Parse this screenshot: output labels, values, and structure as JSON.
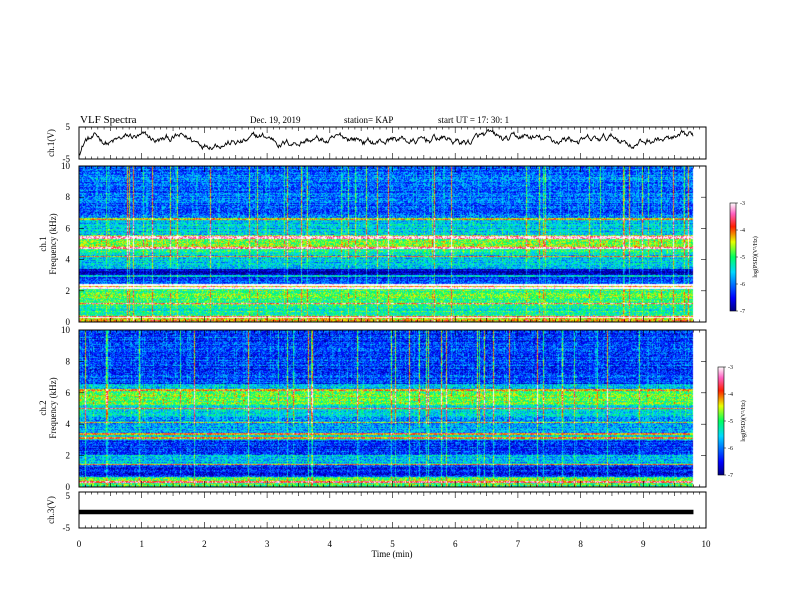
{
  "header": {
    "title": "VLF Spectra",
    "date": "Dec. 19, 2019",
    "station": "station= KAP",
    "start_ut": "start  UT =   17: 30: 1"
  },
  "chart_data": [
    {
      "type": "line",
      "name": "ch1-waveform",
      "ylabel": "ch.1(V)",
      "ylim": [
        -5,
        5
      ],
      "yticks": [
        "5",
        "-5"
      ],
      "xlim": [
        0,
        10
      ],
      "trace_mean": 0.8,
      "trace_spread": 2.2
    },
    {
      "type": "heatmap",
      "name": "ch1-spectrogram",
      "ylabel_channel": "ch.1",
      "ylabel": "Frequency  (kHz)",
      "ylim": [
        0,
        10
      ],
      "yticks": [
        "0",
        "2",
        "4",
        "6",
        "8",
        "10"
      ],
      "xlim": [
        0,
        10
      ],
      "data_end_min": 9.8,
      "colorbar": {
        "label": "log(PSD)(V²/Hz)",
        "range": [
          -7,
          -3
        ],
        "ticks": [
          "-3",
          "-4",
          "-5",
          "-6",
          "-7"
        ]
      },
      "bands_khz": [
        {
          "f0": 0.0,
          "f1": 0.3,
          "level": -4.3
        },
        {
          "f0": 0.3,
          "f1": 1.0,
          "level": -5.2
        },
        {
          "f0": 1.0,
          "f1": 2.1,
          "level": -5.0
        },
        {
          "f0": 2.1,
          "f1": 2.4,
          "level": -4.3
        },
        {
          "f0": 2.4,
          "f1": 2.8,
          "level": -6.3
        },
        {
          "f0": 2.8,
          "f1": 3.4,
          "level": -6.8
        },
        {
          "f0": 3.4,
          "f1": 4.3,
          "level": -5.6
        },
        {
          "f0": 4.3,
          "f1": 4.7,
          "level": -5.2
        },
        {
          "f0": 4.7,
          "f1": 5.6,
          "level": -4.7
        },
        {
          "f0": 5.6,
          "f1": 6.6,
          "level": -5.6
        },
        {
          "f0": 6.6,
          "f1": 10.0,
          "level": -6.1
        }
      ],
      "lines_khz": [
        0.3,
        1.15,
        2.15,
        2.35,
        2.95,
        4.2,
        4.75,
        5.35,
        5.45,
        6.6
      ]
    },
    {
      "type": "heatmap",
      "name": "ch2-spectrogram",
      "ylabel_channel": "ch.2",
      "ylabel": "Frequency  (kHz)",
      "ylim": [
        0,
        10
      ],
      "yticks": [
        "0",
        "2",
        "4",
        "6",
        "8",
        "10"
      ],
      "xlim": [
        0,
        10
      ],
      "data_end_min": 9.8,
      "colorbar": {
        "label": "log(PSD)(V²/Hz)",
        "range": [
          -7,
          -3
        ],
        "ticks": [
          "-3",
          "-4",
          "-5",
          "-6",
          "-7"
        ]
      },
      "bands_khz": [
        {
          "f0": 0.0,
          "f1": 0.6,
          "level": -4.9
        },
        {
          "f0": 0.6,
          "f1": 1.4,
          "level": -6.4
        },
        {
          "f0": 1.4,
          "f1": 2.0,
          "level": -5.6
        },
        {
          "f0": 2.0,
          "f1": 3.0,
          "level": -6.4
        },
        {
          "f0": 3.0,
          "f1": 3.4,
          "level": -5.5
        },
        {
          "f0": 3.4,
          "f1": 4.5,
          "level": -5.8
        },
        {
          "f0": 4.5,
          "f1": 5.2,
          "level": -5.4
        },
        {
          "f0": 5.2,
          "f1": 6.1,
          "level": -4.9
        },
        {
          "f0": 6.1,
          "f1": 6.6,
          "level": -5.6
        },
        {
          "f0": 6.6,
          "f1": 10.0,
          "level": -6.3
        }
      ],
      "lines_khz": [
        0.3,
        1.4,
        3.1,
        3.35,
        4.1,
        5.0,
        6.2
      ]
    },
    {
      "type": "line",
      "name": "ch3-waveform",
      "ylabel": "ch.3(V)",
      "ylim": [
        -5,
        5
      ],
      "yticks": [
        "5",
        "-5"
      ],
      "xlim": [
        0,
        10
      ],
      "trace_value": 0.0
    }
  ],
  "x_axis": {
    "label": "Time  (min)",
    "ticks": [
      "0",
      "1",
      "2",
      "3",
      "4",
      "5",
      "6",
      "7",
      "8",
      "9",
      "10"
    ]
  }
}
